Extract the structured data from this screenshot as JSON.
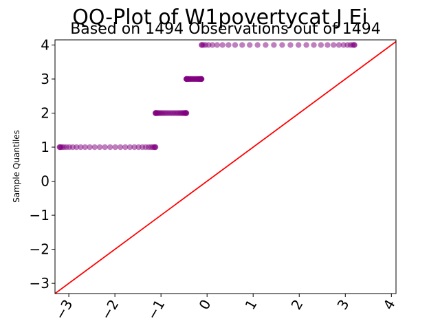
{
  "chart_data": {
    "type": "scatter",
    "title": "QQ-Plot of W1povertycat J Ei",
    "subtitle": "Based on 1494 Observations out of 1494",
    "xlabel": "",
    "ylabel": "Sample Quantiles",
    "xlim": [
      -3.3,
      4.1
    ],
    "ylim": [
      -3.3,
      4.15
    ],
    "x_ticks": [
      -3,
      -2,
      -1,
      0,
      1,
      2,
      3,
      4
    ],
    "x_tick_labels": [
      "−3",
      "−2",
      "−1",
      "0",
      "1",
      "2",
      "3",
      "4"
    ],
    "y_ticks": [
      -3,
      -2,
      -1,
      0,
      1,
      2,
      3,
      4
    ],
    "y_tick_labels": [
      "−3",
      "−2",
      "−1",
      "0",
      "1",
      "2",
      "3",
      "4"
    ],
    "grid": false,
    "legend": "none",
    "series": [
      {
        "points": [
          {
            "y": 1,
            "x_from": -3.2,
            "x_to": -1.12
          },
          {
            "y": 2,
            "x_from": -1.12,
            "x_to": -0.45
          },
          {
            "y": 3,
            "x_from": -0.45,
            "x_to": -0.12
          },
          {
            "y": 4,
            "x_from": -0.12,
            "x_to": 3.2
          }
        ],
        "color": "#800080"
      }
    ],
    "reference_line": {
      "type": "y=x",
      "color": "#ff0000"
    }
  }
}
